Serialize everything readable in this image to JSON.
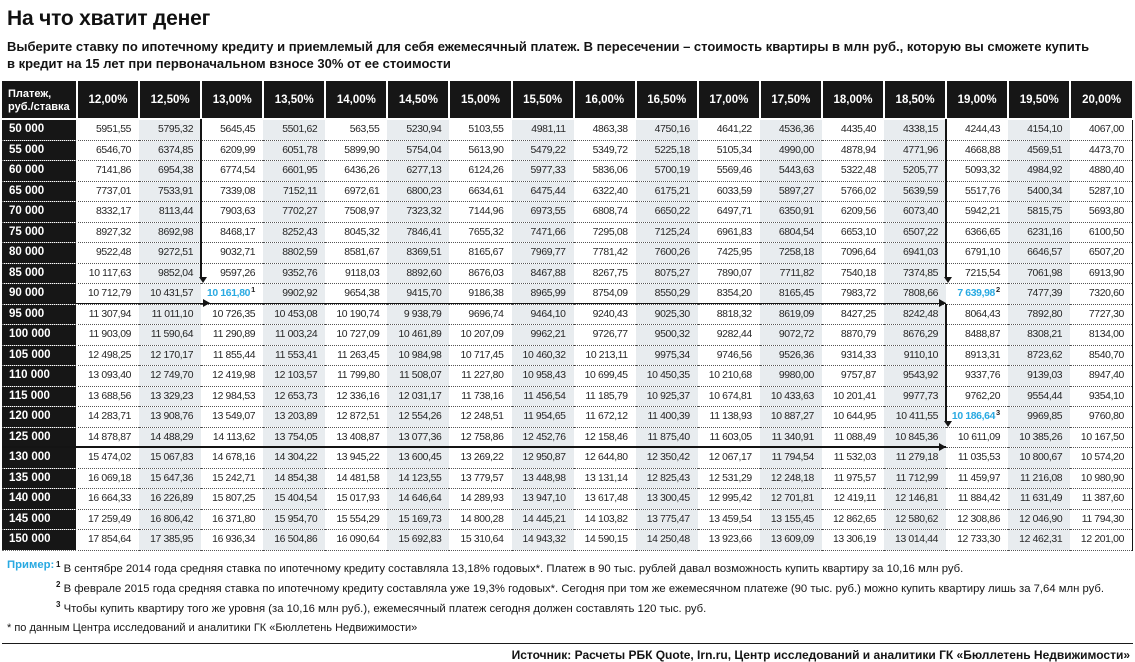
{
  "title": "На что хватит денег",
  "subtitle_lines": [
    "Выберите ставку по ипотечному кредиту и приемлемый для себя ежемесячный платеж. В пересечении – стоимость квартиры в млн руб., которую вы сможете купить",
    "в кредит на 15 лет при первоначальном взносе 30% от ее стоимости"
  ],
  "accent_color": "#29a9e1",
  "chart_data": {
    "type": "table",
    "title": "На что хватит денег",
    "row_label_header": "Платеж,\nруб./ставка",
    "columns": [
      "12,00%",
      "12,50%",
      "13,00%",
      "13,50%",
      "14,00%",
      "14,50%",
      "15,00%",
      "15,50%",
      "16,00%",
      "16,50%",
      "17,00%",
      "17,50%",
      "18,00%",
      "18,50%",
      "19,00%",
      "19,50%",
      "20,00%"
    ],
    "rows": [
      {
        "label": "50 000",
        "values": [
          "5951,55",
          "5795,32",
          "5645,45",
          "5501,62",
          "563,55",
          "5230,94",
          "5103,55",
          "4981,11",
          "4863,38",
          "4750,16",
          "4641,22",
          "4536,36",
          "4435,40",
          "4338,15",
          "4244,43",
          "4154,10",
          "4067,00"
        ]
      },
      {
        "label": "55 000",
        "values": [
          "6546,70",
          "6374,85",
          "6209,99",
          "6051,78",
          "5899,90",
          "5754,04",
          "5613,90",
          "5479,22",
          "5349,72",
          "5225,18",
          "5105,34",
          "4990,00",
          "4878,94",
          "4771,96",
          "4668,88",
          "4569,51",
          "4473,70"
        ]
      },
      {
        "label": "60 000",
        "values": [
          "7141,86",
          "6954,38",
          "6774,54",
          "6601,95",
          "6436,26",
          "6277,13",
          "6124,26",
          "5977,33",
          "5836,06",
          "5700,19",
          "5569,46",
          "5443,63",
          "5322,48",
          "5205,77",
          "5093,32",
          "4984,92",
          "4880,40"
        ]
      },
      {
        "label": "65 000",
        "values": [
          "7737,01",
          "7533,91",
          "7339,08",
          "7152,11",
          "6972,61",
          "6800,23",
          "6634,61",
          "6475,44",
          "6322,40",
          "6175,21",
          "6033,59",
          "5897,27",
          "5766,02",
          "5639,59",
          "5517,76",
          "5400,34",
          "5287,10"
        ]
      },
      {
        "label": "70 000",
        "values": [
          "8332,17",
          "8113,44",
          "7903,63",
          "7702,27",
          "7508,97",
          "7323,32",
          "7144,96",
          "6973,55",
          "6808,74",
          "6650,22",
          "6497,71",
          "6350,91",
          "6209,56",
          "6073,40",
          "5942,21",
          "5815,75",
          "5693,80"
        ]
      },
      {
        "label": "75 000",
        "values": [
          "8927,32",
          "8692,98",
          "8468,17",
          "8252,43",
          "8045,32",
          "7846,41",
          "7655,32",
          "7471,66",
          "7295,08",
          "7125,24",
          "6961,83",
          "6804,54",
          "6653,10",
          "6507,22",
          "6366,65",
          "6231,16",
          "6100,50"
        ]
      },
      {
        "label": "80 000",
        "values": [
          "9522,48",
          "9272,51",
          "9032,71",
          "8802,59",
          "8581,67",
          "8369,51",
          "8165,67",
          "7969,77",
          "7781,42",
          "7600,26",
          "7425,95",
          "7258,18",
          "7096,64",
          "6941,03",
          "6791,10",
          "6646,57",
          "6507,20"
        ]
      },
      {
        "label": "85 000",
        "values": [
          "10 117,63",
          "9852,04",
          "9597,26",
          "9352,76",
          "9118,03",
          "8892,60",
          "8676,03",
          "8467,88",
          "8267,75",
          "8075,27",
          "7890,07",
          "7711,82",
          "7540,18",
          "7374,85",
          "7215,54",
          "7061,98",
          "6913,90"
        ]
      },
      {
        "label": "90 000",
        "values": [
          "10 712,79",
          "10 431,57",
          "10 161,80",
          "9902,92",
          "9654,38",
          "9415,70",
          "9186,38",
          "8965,99",
          "8754,09",
          "8550,29",
          "8354,20",
          "8165,45",
          "7983,72",
          "7808,66",
          "7 639,98",
          "7477,39",
          "7320,60"
        ]
      },
      {
        "label": "95 000",
        "values": [
          "11 307,94",
          "11 011,10",
          "10 726,35",
          "10 453,08",
          "10 190,74",
          "9 938,79",
          "9696,74",
          "9464,10",
          "9240,43",
          "9025,30",
          "8818,32",
          "8619,09",
          "8427,25",
          "8242,48",
          "8064,43",
          "7892,80",
          "7727,30"
        ]
      },
      {
        "label": "100 000",
        "values": [
          "11 903,09",
          "11 590,64",
          "11 290,89",
          "11 003,24",
          "10 727,09",
          "10 461,89",
          "10 207,09",
          "9962,21",
          "9726,77",
          "9500,32",
          "9282,44",
          "9072,72",
          "8870,79",
          "8676,29",
          "8488,87",
          "8308,21",
          "8134,00"
        ]
      },
      {
        "label": "105 000",
        "values": [
          "12 498,25",
          "12 170,17",
          "11 855,44",
          "11 553,41",
          "11 263,45",
          "10 984,98",
          "10 717,45",
          "10 460,32",
          "10 213,11",
          "9975,34",
          "9746,56",
          "9526,36",
          "9314,33",
          "9110,10",
          "8913,31",
          "8723,62",
          "8540,70"
        ]
      },
      {
        "label": "110 000",
        "values": [
          "13 093,40",
          "12 749,70",
          "12 419,98",
          "12 103,57",
          "11 799,80",
          "11 508,07",
          "11 227,80",
          "10 958,43",
          "10 699,45",
          "10 450,35",
          "10 210,68",
          "9980,00",
          "9757,87",
          "9543,92",
          "9337,76",
          "9139,03",
          "8947,40"
        ]
      },
      {
        "label": "115 000",
        "values": [
          "13 688,56",
          "13 329,23",
          "12 984,53",
          "12 653,73",
          "12 336,16",
          "12 031,17",
          "11 738,16",
          "11 456,54",
          "11 185,79",
          "10 925,37",
          "10 674,81",
          "10 433,63",
          "10 201,41",
          "9977,73",
          "9762,20",
          "9554,44",
          "9354,10"
        ]
      },
      {
        "label": "120 000",
        "values": [
          "14 283,71",
          "13 908,76",
          "13 549,07",
          "13 203,89",
          "12 872,51",
          "12 554,26",
          "12 248,51",
          "11 954,65",
          "11 672,12",
          "11 400,39",
          "11 138,93",
          "10 887,27",
          "10 644,95",
          "10 411,55",
          "10 186,64",
          "9969,85",
          "9760,80"
        ]
      },
      {
        "label": "125 000",
        "values": [
          "14 878,87",
          "14 488,29",
          "14 113,62",
          "13 754,05",
          "13 408,87",
          "13 077,36",
          "12 758,86",
          "12 452,76",
          "12 158,46",
          "11 875,40",
          "11 603,05",
          "11 340,91",
          "11 088,49",
          "10 845,36",
          "10 611,09",
          "10 385,26",
          "10 167,50"
        ]
      },
      {
        "label": "130 000",
        "values": [
          "15 474,02",
          "15 067,83",
          "14 678,16",
          "14 304,22",
          "13 945,22",
          "13 600,45",
          "13 269,22",
          "12 950,87",
          "12 644,80",
          "12 350,42",
          "12 067,17",
          "11 794,54",
          "11 532,03",
          "11 279,18",
          "11 035,53",
          "10 800,67",
          "10 574,20"
        ]
      },
      {
        "label": "135 000",
        "values": [
          "16 069,18",
          "15 647,36",
          "15 242,71",
          "14 854,38",
          "14 481,58",
          "14 123,55",
          "13 779,57",
          "13 448,98",
          "13 131,14",
          "12 825,43",
          "12 531,29",
          "12 248,18",
          "11 975,57",
          "11 712,99",
          "11 459,97",
          "11 216,08",
          "10 980,90"
        ]
      },
      {
        "label": "140 000",
        "values": [
          "16 664,33",
          "16 226,89",
          "15 807,25",
          "15 404,54",
          "15 017,93",
          "14 646,64",
          "14 289,93",
          "13 947,10",
          "13 617,48",
          "13 300,45",
          "12 995,42",
          "12 701,81",
          "12 419,11",
          "12 146,81",
          "11 884,42",
          "11 631,49",
          "11 387,60"
        ]
      },
      {
        "label": "145 000",
        "values": [
          "17 259,49",
          "16 806,42",
          "16 371,80",
          "15 954,70",
          "15 554,29",
          "15 169,73",
          "14 800,28",
          "14 445,21",
          "14 103,82",
          "13 775,47",
          "13 459,54",
          "13 155,45",
          "12 862,65",
          "12 580,62",
          "12 308,86",
          "12 046,90",
          "11 794,30"
        ]
      },
      {
        "label": "150 000",
        "values": [
          "17 854,64",
          "17 385,95",
          "16 936,34",
          "16 504,86",
          "16 090,64",
          "15 692,83",
          "15 310,64",
          "14 943,32",
          "14 590,15",
          "14 250,48",
          "13 923,66",
          "13 609,09",
          "13 306,19",
          "13 014,44",
          "12 733,30",
          "12 462,31",
          "12 201,00"
        ]
      }
    ],
    "highlights": [
      {
        "row": "90 000",
        "rate": "13,00%",
        "value": "10 161,80",
        "sup": "1"
      },
      {
        "row": "90 000",
        "rate": "19,00%",
        "value": "7 639,98",
        "sup": "2"
      },
      {
        "row": "120 000",
        "rate": "19,00%",
        "value": "10 186,64",
        "sup": "3"
      }
    ]
  },
  "footnotes": {
    "label": "Пример:",
    "items": [
      {
        "sup": "1",
        "text": "В сентябре 2014 года средняя ставка по ипотечному кредиту составляла 13,18% годовых*. Платеж в 90 тыс. рублей давал возможность купить квартиру за 10,16 млн руб."
      },
      {
        "sup": "2",
        "text": "В феврале 2015 года средняя ставка по ипотечному кредиту составляла уже 19,3% годовых*. Сегодня при том же ежемесячном платеже (90 тыс. руб.) можно купить квартиру лишь за 7,64 млн руб."
      },
      {
        "sup": "3",
        "text": "Чтобы купить квартиру того же уровня (за 10,16 млн руб.), ежемесячный платеж сегодня должен составлять 120 тыс. руб."
      }
    ],
    "asterisk": "* по данным Центра исследований и аналитики ГК «Бюллетень Недвижимости»"
  },
  "source": {
    "label": "Источник:",
    "text": " Расчеты РБК Quote, Irn.ru, Центр исследований и аналитики ГК «Бюллетень Недвижимости»"
  }
}
